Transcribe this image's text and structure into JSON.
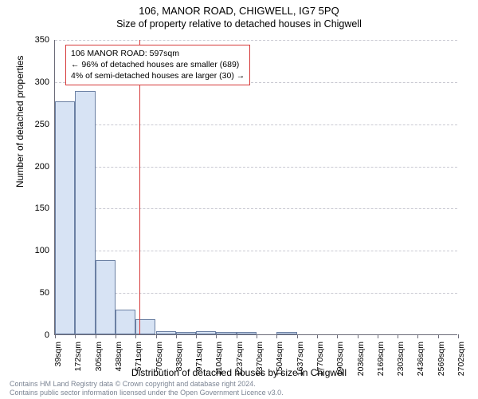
{
  "title_main": "106, MANOR ROAD, CHIGWELL, IG7 5PQ",
  "title_sub": "Size of property relative to detached houses in Chigwell",
  "y_axis_title": "Number of detached properties",
  "x_axis_title": "Distribution of detached houses by size in Chigwell",
  "chart": {
    "type": "histogram",
    "ylim": [
      0,
      350
    ],
    "ytick_step": 50,
    "yticks": [
      0,
      50,
      100,
      150,
      200,
      250,
      300,
      350
    ],
    "xticks": [
      "39sqm",
      "172sqm",
      "305sqm",
      "438sqm",
      "571sqm",
      "705sqm",
      "838sqm",
      "971sqm",
      "1104sqm",
      "1237sqm",
      "1370sqm",
      "1504sqm",
      "1637sqm",
      "1770sqm",
      "1903sqm",
      "2036sqm",
      "2169sqm",
      "2303sqm",
      "2436sqm",
      "2569sqm",
      "2702sqm"
    ],
    "bar_color": "#d7e3f4",
    "bar_border": "#6b80a3",
    "grid_color": "#c9c9d2",
    "axis_color": "#6b6b78",
    "background_color": "#ffffff",
    "bars": [
      276,
      289,
      88,
      29,
      18,
      4,
      3,
      4,
      3,
      3,
      0,
      3,
      0,
      0,
      0,
      0,
      0,
      0,
      0,
      0
    ],
    "marker": {
      "color": "#d63a3a",
      "x_sqm": 597,
      "x_min": 39,
      "x_max": 2702
    }
  },
  "info_box": {
    "border_color": "#d63a3a",
    "line1": "106 MANOR ROAD: 597sqm",
    "line2": "← 96% of detached houses are smaller (689)",
    "line3": "4% of semi-detached houses are larger (30) →"
  },
  "attribution": {
    "line1": "Contains HM Land Registry data © Crown copyright and database right 2024.",
    "line2": "Contains public sector information licensed under the Open Government Licence v3.0."
  }
}
